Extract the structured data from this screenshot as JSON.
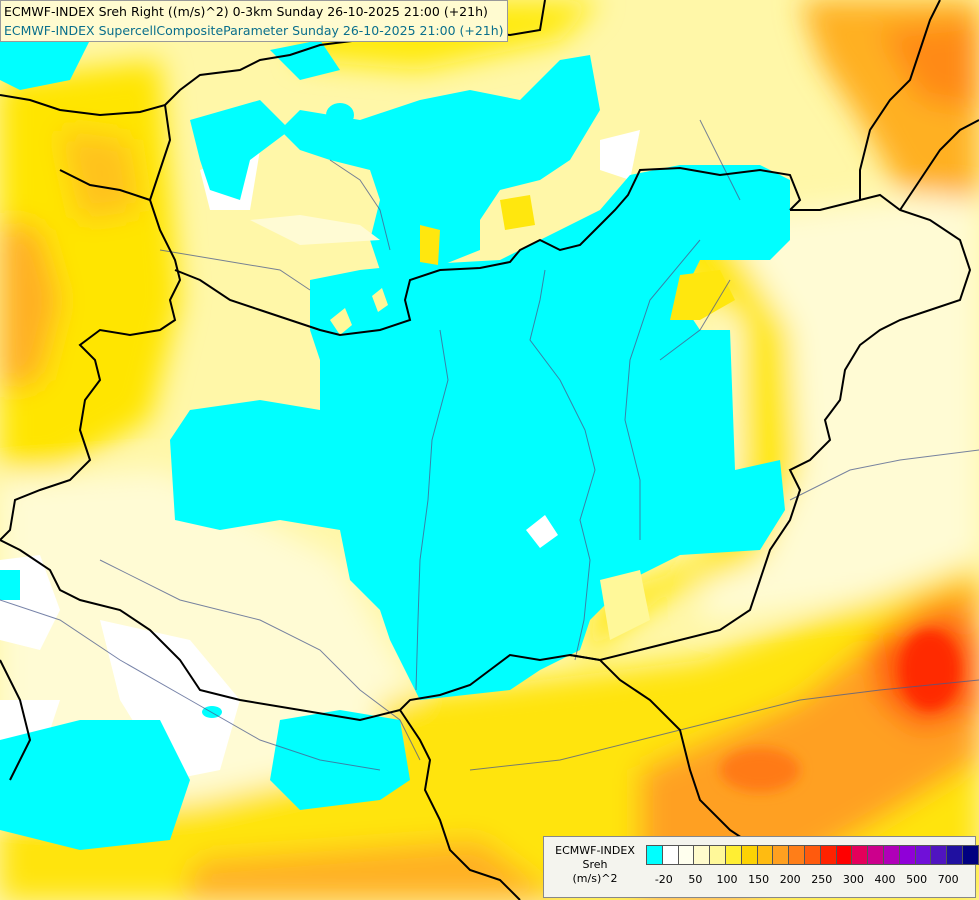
{
  "header": {
    "line1": "ECMWF-INDEX Sreh Right ((m/s)^2) 0-3km Sunday 26-10-2025 21:00 (+21h)",
    "line2": "ECMWF-INDEX SupercellCompositeParameter Sunday 26-10-2025 21:00 (+21h)"
  },
  "legend": {
    "title": [
      "ECMWF-INDEX",
      "Sreh",
      "(m/s)^2"
    ],
    "colors": [
      "#00ffff",
      "#ffffff",
      "#ffffee",
      "#fffbcc",
      "#fff899",
      "#ffee33",
      "#fcd204",
      "#ffbb11",
      "#ffa020",
      "#ff7e18",
      "#ff5a0d",
      "#ff2200",
      "#ff0000",
      "#e4005a",
      "#cc008c",
      "#b000b8",
      "#9000d8",
      "#7010d8",
      "#5014c0",
      "#2010a0",
      "#000080"
    ],
    "ticks": [
      "-20",
      "50",
      "100",
      "150",
      "200",
      "250",
      "300",
      "400",
      "500",
      "700"
    ]
  },
  "colors": {
    "supercell_cyan": "#00ffff",
    "sreh_low": "#ffffcc",
    "sreh_mid": "#ffee00",
    "sreh_high": "#ffa020",
    "sreh_max": "#ff2200",
    "border": "#000000",
    "river": "#4a5a8c"
  }
}
